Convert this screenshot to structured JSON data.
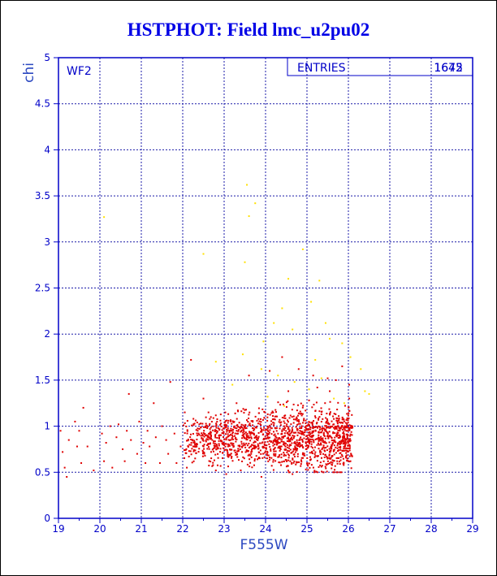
{
  "title": "HSTPHOT: Field lmc_u2pu02",
  "colors": {
    "title": "#0000e6",
    "axis": "#0000c8",
    "grid": "#1a1aa8",
    "label": "#2b48c0",
    "points_main": "#e00000",
    "points_flagged": "#ffe000"
  },
  "panel_label": "WF2",
  "stats_box": {
    "label": "ENTRIES",
    "values": [
      "1645",
      "1672"
    ]
  },
  "chart_data": {
    "type": "scatter",
    "title": "HSTPHOT: Field lmc_u2pu02",
    "xlabel": "F555W",
    "ylabel": "chi",
    "xlim": [
      19,
      29
    ],
    "ylim": [
      0,
      5
    ],
    "grid": true,
    "x_ticks": [
      "19",
      "20",
      "21",
      "22",
      "23",
      "24",
      "25",
      "26",
      "27",
      "28",
      "29"
    ],
    "y_ticks": [
      "0",
      "0.5",
      "1",
      "1.5",
      "2",
      "2.5",
      "3",
      "3.5",
      "4",
      "4.5",
      "5"
    ],
    "series": [
      {
        "points": [
          [
            19.05,
            0.95
          ],
          [
            19.1,
            0.72
          ],
          [
            19.15,
            0.55
          ],
          [
            19.2,
            0.45
          ],
          [
            19.25,
            0.85
          ],
          [
            19.4,
            1.05
          ],
          [
            19.45,
            0.78
          ],
          [
            19.5,
            0.95
          ],
          [
            19.55,
            0.6
          ],
          [
            19.6,
            1.2
          ],
          [
            19.7,
            0.78
          ],
          [
            19.85,
            0.52
          ],
          [
            20.05,
            0.92
          ],
          [
            20.1,
            0.62
          ],
          [
            20.15,
            0.82
          ],
          [
            20.25,
            1.0
          ],
          [
            20.3,
            0.55
          ],
          [
            20.4,
            0.88
          ],
          [
            20.45,
            1.02
          ],
          [
            20.55,
            0.75
          ],
          [
            20.6,
            0.62
          ],
          [
            20.65,
            0.95
          ],
          [
            20.7,
            1.35
          ],
          [
            20.75,
            0.85
          ],
          [
            20.9,
            0.7
          ],
          [
            20.95,
            1.05
          ],
          [
            21.05,
            0.82
          ],
          [
            21.1,
            0.6
          ],
          [
            21.15,
            0.95
          ],
          [
            21.2,
            0.78
          ],
          [
            21.3,
            1.25
          ],
          [
            21.35,
            0.88
          ],
          [
            21.45,
            0.6
          ],
          [
            21.5,
            1.0
          ],
          [
            21.6,
            0.85
          ],
          [
            21.65,
            0.7
          ],
          [
            21.7,
            1.48
          ],
          [
            21.8,
            0.92
          ],
          [
            21.85,
            0.6
          ],
          [
            21.95,
            0.78
          ],
          [
            22.05,
            1.15
          ],
          [
            22.1,
            0.55
          ],
          [
            22.2,
            1.72
          ],
          [
            22.3,
            0.65
          ],
          [
            22.5,
            1.3
          ],
          [
            22.8,
            0.52
          ],
          [
            23.05,
            0.48
          ],
          [
            23.3,
            1.25
          ],
          [
            23.6,
            1.55
          ],
          [
            23.9,
            0.45
          ],
          [
            24.1,
            1.6
          ],
          [
            24.4,
            1.75
          ],
          [
            24.55,
            1.38
          ],
          [
            24.65,
            0.48
          ],
          [
            24.8,
            1.62
          ],
          [
            25.05,
            1.28
          ],
          [
            25.15,
            1.55
          ],
          [
            25.25,
            1.42
          ],
          [
            25.4,
            0.5
          ],
          [
            25.5,
            1.52
          ],
          [
            25.55,
            1.38
          ],
          [
            25.7,
            1.5
          ],
          [
            25.85,
            1.65
          ],
          [
            26.02,
            1.45
          ],
          [
            26.05,
            0.62
          ],
          [
            26.08,
            0.98
          ]
        ],
        "n_random_fill": 1520,
        "fill_region": {
          "x": [
            22.0,
            26.1
          ],
          "y": [
            0.55,
            1.2
          ]
        }
      },
      {
        "points": [
          [
            20.1,
            3.27
          ],
          [
            22.5,
            2.87
          ],
          [
            23.55,
            3.62
          ],
          [
            23.6,
            3.28
          ],
          [
            23.75,
            3.42
          ],
          [
            23.5,
            2.78
          ],
          [
            24.55,
            2.6
          ],
          [
            24.4,
            2.28
          ],
          [
            25.3,
            2.58
          ],
          [
            24.9,
            2.92
          ],
          [
            25.1,
            2.35
          ],
          [
            25.45,
            2.12
          ],
          [
            25.55,
            1.95
          ],
          [
            24.2,
            2.12
          ],
          [
            23.95,
            1.92
          ],
          [
            24.65,
            2.05
          ],
          [
            23.45,
            1.78
          ],
          [
            25.85,
            1.9
          ],
          [
            26.05,
            1.75
          ],
          [
            26.3,
            1.62
          ],
          [
            26.5,
            1.35
          ],
          [
            26.4,
            1.38
          ],
          [
            23.9,
            1.62
          ],
          [
            24.3,
            1.55
          ],
          [
            24.7,
            1.48
          ],
          [
            25.05,
            1.4
          ],
          [
            25.35,
            1.52
          ],
          [
            25.65,
            1.3
          ],
          [
            25.9,
            1.25
          ],
          [
            24.45,
            1.22
          ],
          [
            23.2,
            1.45
          ],
          [
            22.8,
            1.7
          ],
          [
            24.05,
            1.32
          ],
          [
            25.2,
            1.72
          ]
        ]
      }
    ]
  }
}
